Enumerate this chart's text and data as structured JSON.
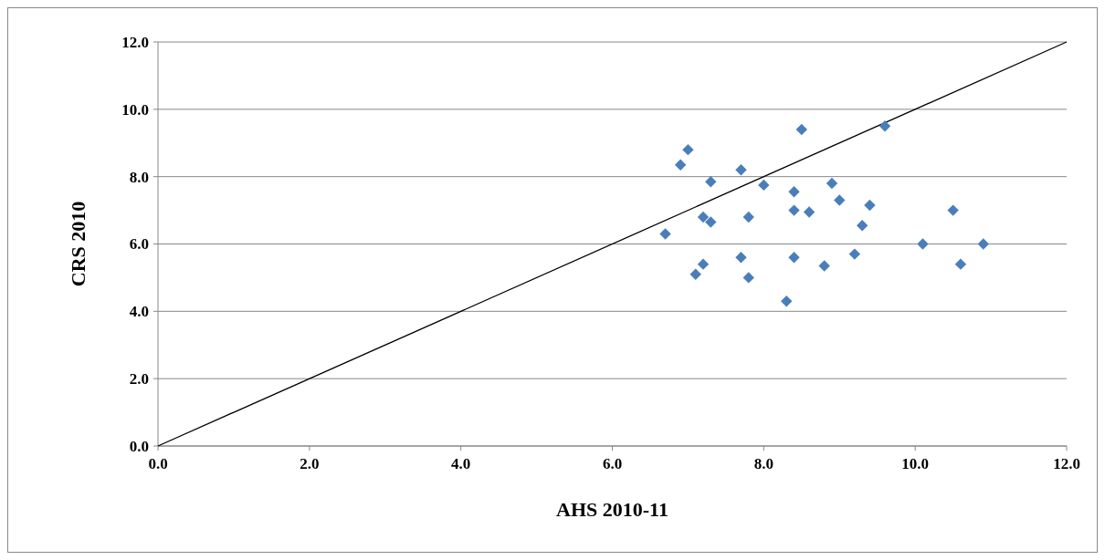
{
  "chart_data": {
    "type": "scatter",
    "xlabel": "AHS 2010-11",
    "ylabel": "CRS 2010",
    "xlim": [
      0,
      12
    ],
    "ylim": [
      0,
      12
    ],
    "xticks": [
      {
        "value": 0,
        "label": "0.0"
      },
      {
        "value": 2,
        "label": "2.0"
      },
      {
        "value": 4,
        "label": "4.0"
      },
      {
        "value": 6,
        "label": "6.0"
      },
      {
        "value": 8,
        "label": "8.0"
      },
      {
        "value": 10,
        "label": "10.0"
      },
      {
        "value": 12,
        "label": "12.0"
      }
    ],
    "yticks": [
      {
        "value": 0,
        "label": "0.0"
      },
      {
        "value": 2,
        "label": "2.0"
      },
      {
        "value": 4,
        "label": "4.0"
      },
      {
        "value": 6,
        "label": "6.0"
      },
      {
        "value": 8,
        "label": "8.0"
      },
      {
        "value": 10,
        "label": "10.0"
      },
      {
        "value": 12,
        "label": "12.0"
      }
    ],
    "grid": "y",
    "marker": "diamond",
    "series": [
      {
        "type": "line",
        "color": "#000000",
        "x": [
          0,
          12
        ],
        "values": [
          0,
          12
        ],
        "marker": "none"
      },
      {
        "color": "#4a7ebb",
        "x": [
          6.7,
          6.9,
          7.0,
          7.3,
          7.2,
          7.3,
          7.1,
          7.2,
          7.7,
          7.8,
          7.7,
          7.8,
          8.0,
          8.3,
          8.4,
          8.4,
          8.6,
          8.4,
          8.5,
          8.9,
          9.0,
          9.4,
          9.3,
          8.8,
          9.2,
          9.6,
          10.1,
          10.5,
          10.6,
          10.9
        ],
        "values": [
          6.3,
          8.35,
          8.8,
          7.85,
          6.8,
          6.65,
          5.1,
          5.4,
          8.2,
          6.8,
          5.6,
          5.0,
          7.75,
          4.3,
          7.55,
          7.0,
          6.95,
          5.6,
          9.4,
          7.8,
          7.3,
          7.15,
          6.55,
          5.35,
          5.7,
          9.5,
          6.0,
          7.0,
          5.4,
          6.0
        ]
      }
    ]
  }
}
